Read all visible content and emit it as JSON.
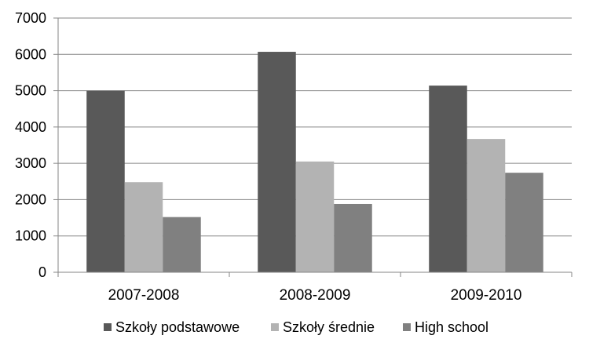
{
  "chart_data": {
    "type": "bar",
    "title": "",
    "xlabel": "",
    "ylabel": "",
    "categories": [
      "2007-2008",
      "2008-2009",
      "2009-2010"
    ],
    "series": [
      {
        "name": "Szkoły podstawowe",
        "values": [
          5000,
          6070,
          5140
        ],
        "color": "#595959"
      },
      {
        "name": "Szkoły średnie",
        "values": [
          2480,
          3050,
          3670
        ],
        "color": "#b3b3b3"
      },
      {
        "name": "High school",
        "values": [
          1520,
          1880,
          2740
        ],
        "color": "#808080"
      }
    ],
    "ylim": [
      0,
      7000
    ],
    "yticks": [
      0,
      1000,
      2000,
      3000,
      4000,
      5000,
      6000,
      7000
    ],
    "grid": true,
    "legend_position": "bottom",
    "gridline_color": "#868686",
    "axis_color": "#868686"
  }
}
